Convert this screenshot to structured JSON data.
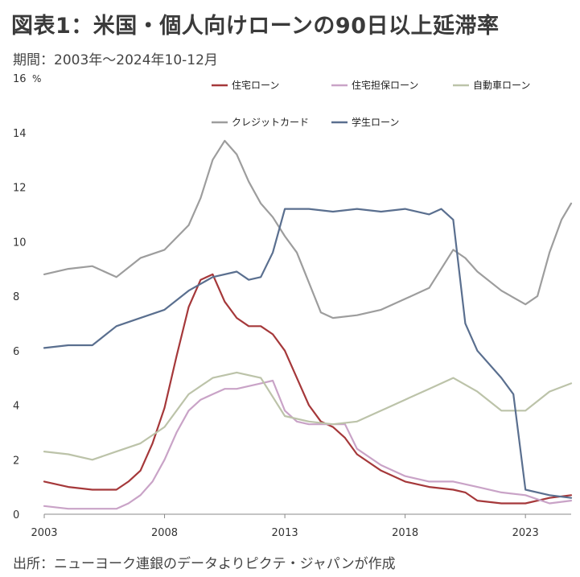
{
  "title": "図表1：米国・個人向けローンの90日以上延滞率",
  "period": "期間：2003年～2024年10-12月",
  "source": "出所：ニューヨーク連銀のデータよりピクテ・ジャパンが作成",
  "chart_data": {
    "type": "line",
    "unit": "%",
    "ylim": [
      0,
      16
    ],
    "yticks": [
      "16",
      "14",
      "12",
      "10",
      "8",
      "6",
      "4",
      "2",
      "0"
    ],
    "xlim": [
      2003,
      2024.9
    ],
    "xticks": [
      "2003",
      "2008",
      "2013",
      "2018",
      "2023"
    ],
    "grid": false,
    "legend_position": "top",
    "series": [
      {
        "name": "住宅ローン",
        "color": "#a5383a",
        "x": [
          2003,
          2004,
          2005,
          2006,
          2006.5,
          2007,
          2007.5,
          2008,
          2008.5,
          2009,
          2009.5,
          2010,
          2010.5,
          2011,
          2011.5,
          2012,
          2012.5,
          2013,
          2013.5,
          2014,
          2014.5,
          2015,
          2015.5,
          2016,
          2017,
          2018,
          2019,
          2020,
          2020.5,
          2021,
          2022,
          2023,
          2024,
          2024.9
        ],
        "y": [
          1.2,
          1.0,
          0.9,
          0.9,
          1.2,
          1.6,
          2.6,
          3.9,
          5.8,
          7.6,
          8.6,
          8.8,
          7.8,
          7.2,
          6.9,
          6.9,
          6.6,
          6.0,
          5.0,
          4.0,
          3.4,
          3.2,
          2.8,
          2.2,
          1.6,
          1.2,
          1.0,
          0.9,
          0.8,
          0.5,
          0.4,
          0.4,
          0.6,
          0.7
        ]
      },
      {
        "name": "住宅担保ローン",
        "color": "#c9a3c7",
        "x": [
          2003,
          2004,
          2005,
          2006,
          2006.5,
          2007,
          2007.5,
          2008,
          2008.5,
          2009,
          2009.5,
          2010,
          2010.5,
          2011,
          2011.5,
          2012,
          2012.5,
          2013,
          2013.5,
          2014,
          2015,
          2015.5,
          2016,
          2017,
          2018,
          2019,
          2020,
          2021,
          2022,
          2023,
          2024,
          2024.9
        ],
        "y": [
          0.3,
          0.2,
          0.2,
          0.2,
          0.4,
          0.7,
          1.2,
          2.0,
          3.0,
          3.8,
          4.2,
          4.4,
          4.6,
          4.6,
          4.7,
          4.8,
          4.9,
          3.8,
          3.4,
          3.3,
          3.3,
          3.3,
          2.4,
          1.8,
          1.4,
          1.2,
          1.2,
          1.0,
          0.8,
          0.7,
          0.4,
          0.5
        ]
      },
      {
        "name": "自動車ローン",
        "color": "#bcc3a9",
        "x": [
          2003,
          2004,
          2005,
          2006,
          2007,
          2008,
          2009,
          2010,
          2011,
          2012,
          2013,
          2014,
          2015,
          2016,
          2017,
          2018,
          2019,
          2020,
          2021,
          2022,
          2023,
          2024,
          2024.9
        ],
        "y": [
          2.3,
          2.2,
          2.0,
          2.3,
          2.6,
          3.2,
          4.4,
          5.0,
          5.2,
          5.0,
          3.6,
          3.4,
          3.3,
          3.4,
          3.8,
          4.2,
          4.6,
          5.0,
          4.5,
          3.8,
          3.8,
          4.5,
          4.8
        ]
      },
      {
        "name": "クレジットカード",
        "color": "#9d9d9d",
        "x": [
          2003,
          2004,
          2005,
          2006,
          2007,
          2008,
          2009,
          2009.5,
          2010,
          2010.5,
          2011,
          2011.5,
          2012,
          2012.5,
          2013,
          2013.5,
          2014,
          2014.5,
          2015,
          2016,
          2017,
          2018,
          2019,
          2020,
          2020.5,
          2021,
          2022,
          2023,
          2023.5,
          2024,
          2024.5,
          2024.9
        ],
        "y": [
          8.8,
          9.0,
          9.1,
          8.7,
          9.4,
          9.7,
          10.6,
          11.6,
          13.0,
          13.7,
          13.2,
          12.2,
          11.4,
          10.9,
          10.2,
          9.6,
          8.5,
          7.4,
          7.2,
          7.3,
          7.5,
          7.9,
          8.3,
          9.7,
          9.4,
          8.9,
          8.2,
          7.7,
          8.0,
          9.6,
          10.8,
          11.4
        ]
      },
      {
        "name": "学生ローン",
        "color": "#5a6f8f",
        "x": [
          2003,
          2004,
          2005,
          2006,
          2007,
          2008,
          2009,
          2010,
          2011,
          2011.5,
          2012,
          2012.5,
          2013,
          2014,
          2015,
          2016,
          2017,
          2018,
          2019,
          2019.5,
          2020,
          2020.5,
          2021,
          2022,
          2022.5,
          2023,
          2024,
          2024.9
        ],
        "y": [
          6.1,
          6.2,
          6.2,
          6.9,
          7.2,
          7.5,
          8.2,
          8.7,
          8.9,
          8.6,
          8.7,
          9.6,
          11.2,
          11.2,
          11.1,
          11.2,
          11.1,
          11.2,
          11.0,
          11.2,
          10.8,
          7.0,
          6.0,
          5.0,
          4.4,
          0.9,
          0.7,
          0.6
        ]
      }
    ]
  }
}
